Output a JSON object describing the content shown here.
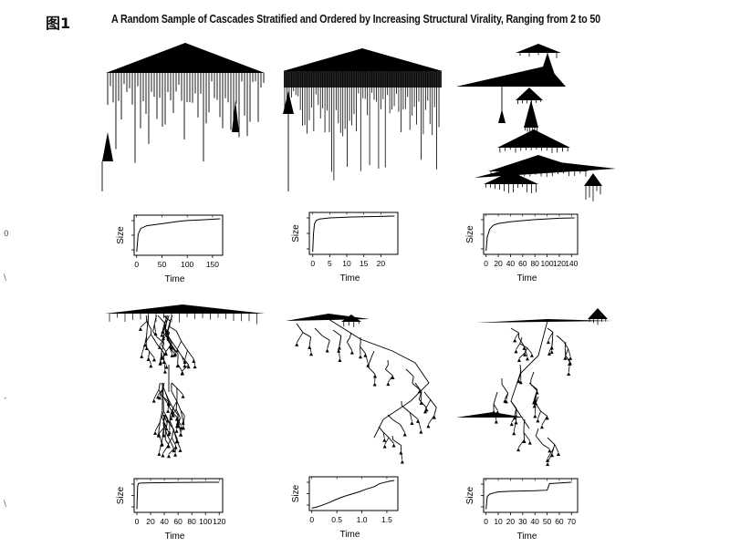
{
  "figure": {
    "label": "图1",
    "title": "A Random Sample of Cascades Stratified and Ordered by Increasing Structural Virality, Ranging from 2 to 50"
  },
  "margin_marks": [
    "0",
    "\\",
    "-",
    "\\"
  ],
  "colors": {
    "ink": "#000000",
    "plot_border": "#000000",
    "background": "#ffffff"
  },
  "chart_data": [
    {
      "type": "line",
      "cascade_shape": "broadcast",
      "xlabel": "Time",
      "ylabel": "Size",
      "x_ticks": [
        "0",
        "50",
        "100",
        "150"
      ],
      "xlim": [
        -5,
        170
      ],
      "x": [
        0,
        3,
        8,
        20,
        40,
        60,
        80,
        100,
        130,
        165
      ],
      "y": [
        0.05,
        0.55,
        0.72,
        0.8,
        0.84,
        0.88,
        0.92,
        0.95,
        0.97,
        1.0
      ]
    },
    {
      "type": "line",
      "cascade_shape": "broadcast",
      "xlabel": "Time",
      "ylabel": "Size",
      "x_ticks": [
        "0",
        "5",
        "10",
        "15",
        "20"
      ],
      "xlim": [
        -1,
        25
      ],
      "x": [
        0,
        0.2,
        0.5,
        1,
        2,
        5,
        10,
        15,
        20,
        24
      ],
      "y": [
        0.02,
        0.5,
        0.78,
        0.88,
        0.92,
        0.95,
        0.97,
        0.98,
        0.99,
        1.0
      ]
    },
    {
      "type": "line",
      "cascade_shape": "multi-hub",
      "xlabel": "Time",
      "ylabel": "Size",
      "x_ticks": [
        "0",
        "20",
        "40",
        "60",
        "80",
        "100",
        "120",
        "140"
      ],
      "xlim": [
        -4,
        150
      ],
      "x": [
        0,
        2,
        6,
        12,
        20,
        40,
        60,
        80,
        100,
        120,
        145
      ],
      "y": [
        0.05,
        0.45,
        0.68,
        0.79,
        0.84,
        0.89,
        0.92,
        0.95,
        0.97,
        0.99,
        1.0
      ]
    },
    {
      "type": "line",
      "cascade_shape": "deep",
      "xlabel": "Time",
      "ylabel": "Size",
      "x_ticks": [
        "0",
        "20",
        "40",
        "60",
        "80",
        "100",
        "120"
      ],
      "xlim": [
        -4,
        125
      ],
      "x": [
        0,
        1,
        2,
        5,
        20,
        60,
        100,
        120
      ],
      "y": [
        0.05,
        0.85,
        0.95,
        0.97,
        0.98,
        0.99,
        1.0,
        1.0
      ]
    },
    {
      "type": "line",
      "cascade_shape": "viral",
      "xlabel": "Time",
      "ylabel": "Size",
      "x_ticks": [
        "0",
        "0.5",
        "1.0",
        "1.5"
      ],
      "xlim": [
        -0.05,
        1.72
      ],
      "x": [
        0,
        0.1,
        0.2,
        0.35,
        0.5,
        0.65,
        0.8,
        0.95,
        1.1,
        1.25,
        1.35,
        1.45,
        1.55,
        1.65
      ],
      "y": [
        0.02,
        0.06,
        0.12,
        0.22,
        0.34,
        0.44,
        0.52,
        0.6,
        0.7,
        0.78,
        0.88,
        0.93,
        0.97,
        1.0
      ]
    },
    {
      "type": "line",
      "cascade_shape": "viral",
      "xlabel": "Time",
      "ylabel": "Size",
      "x_ticks": [
        "0",
        "10",
        "20",
        "30",
        "40",
        "50",
        "60",
        "70"
      ],
      "xlim": [
        -2,
        75
      ],
      "x": [
        0,
        1,
        3,
        6,
        10,
        20,
        40,
        50,
        52,
        70
      ],
      "y": [
        0.05,
        0.5,
        0.58,
        0.62,
        0.66,
        0.68,
        0.7,
        0.72,
        0.95,
        1.0
      ]
    }
  ]
}
